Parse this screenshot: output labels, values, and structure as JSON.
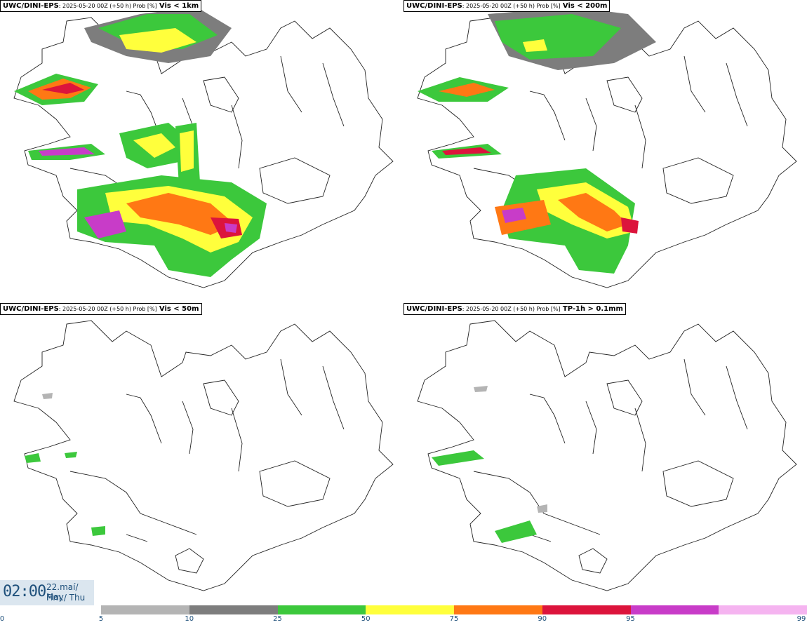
{
  "panels": [
    {
      "model": "UWC/DINI-EPS",
      "meta": ": 2025-05-20 00Z (+50 h) Prob [%]",
      "field": "Vis < 1km"
    },
    {
      "model": "UWC/DINI-EPS",
      "meta": ": 2025-05-20 00Z (+50 h) Prob [%]",
      "field": "Vis < 200m"
    },
    {
      "model": "UWC/DINI-EPS",
      "meta": ": 2025-05-20 00Z (+50 h) Prob [%]",
      "field": "Vis < 50m"
    },
    {
      "model": "UWC/DINI-EPS",
      "meta": ": 2025-05-20 00Z (+50 h) Prob [%]",
      "field": "TP-1h > 0.1mm"
    }
  ],
  "valid_time": {
    "time": "02:00",
    "date_line1": "22.maí/ May",
    "date_line2": "Fim./ Thu"
  },
  "colorbar": {
    "ticks": [
      "0",
      "5",
      "10",
      "25",
      "50",
      "75",
      "90",
      "95",
      "99"
    ],
    "colors": [
      "#ffffff",
      "#b4b4b4",
      "#7d7d7d",
      "#3cc83c",
      "#ffff3c",
      "#ff7814",
      "#dc143c",
      "#c83cc8",
      "#f5b4f0"
    ]
  },
  "legend_icons": {
    "map": "iceland-outline-map"
  }
}
